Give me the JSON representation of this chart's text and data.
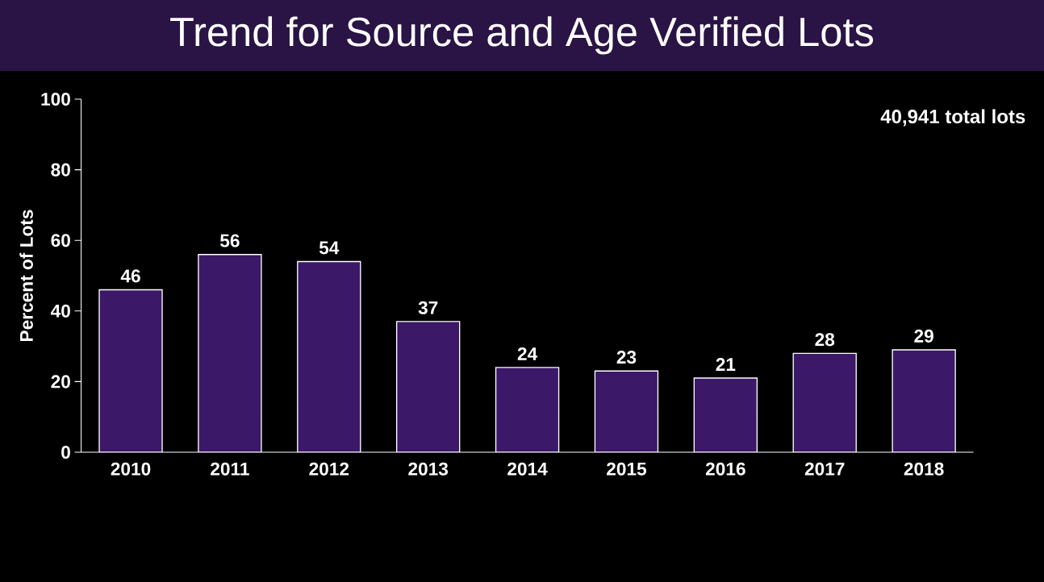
{
  "chart_data": {
    "type": "bar",
    "title": "Trend for Source and Age Verified Lots",
    "ylabel": "Percent of Lots",
    "categories": [
      "2010",
      "2011",
      "2012",
      "2013",
      "2014",
      "2015",
      "2016",
      "2017",
      "2018"
    ],
    "values": [
      46,
      56,
      54,
      37,
      24,
      23,
      21,
      28,
      29
    ],
    "color": "#3b1868",
    "ylim": [
      0,
      100
    ],
    "yticks": [
      0,
      20,
      40,
      60,
      80,
      100
    ],
    "data_labels": true,
    "grid": false,
    "annotations": [
      "40,941 total lots"
    ]
  }
}
